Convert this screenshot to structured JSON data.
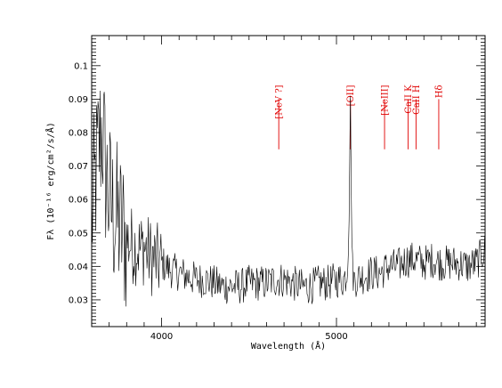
{
  "chart_data": {
    "type": "line",
    "title": "",
    "xlabel": "Wavelength (Å)",
    "ylabel": "Fλ (10⁻¹⁶ erg/cm²/s/Å)",
    "xlim": [
      3600,
      5850
    ],
    "ylim": [
      0.022,
      0.109
    ],
    "x_ticks": [
      4000,
      5000
    ],
    "y_ticks": [
      0.03,
      0.04,
      0.05,
      0.06,
      0.07,
      0.08,
      0.09,
      0.1
    ],
    "grid": false,
    "legend": "none",
    "colors": {
      "spectrum": "#000000",
      "annotation": "#e00000"
    },
    "annotations": [
      {
        "label": "[NeV ?]",
        "x": 4670,
        "y_range": [
          0.075,
          0.09
        ]
      },
      {
        "label": "[OII]",
        "x": 5080,
        "y_range": [
          0.075,
          0.09
        ]
      },
      {
        "label": "[NeIII]",
        "x": 5275,
        "y_range": [
          0.075,
          0.09
        ]
      },
      {
        "label": "CaII K",
        "x": 5410,
        "y_range": [
          0.075,
          0.09
        ]
      },
      {
        "label": "CaII H",
        "x": 5455,
        "y_range": [
          0.075,
          0.09
        ]
      },
      {
        "label": "Hδ",
        "x": 5585,
        "y_range": [
          0.075,
          0.09
        ]
      }
    ],
    "series": [
      {
        "x": [
          3600,
          3620,
          3640,
          3660,
          3680,
          3700,
          3720,
          3740,
          3760,
          3780,
          3800,
          3820,
          3840,
          3860,
          3880,
          3900,
          3920,
          3940,
          3960,
          3980,
          4000,
          4050,
          4100,
          4150,
          4200,
          4250,
          4300,
          4350,
          4400,
          4450,
          4500,
          4550,
          4600,
          4650,
          4700,
          4750,
          4800,
          4850,
          4900,
          4950,
          5000,
          5040,
          5060,
          5070,
          5075,
          5080,
          5085,
          5090,
          5100,
          5150,
          5200,
          5250,
          5300,
          5350,
          5400,
          5450,
          5500,
          5550,
          5600,
          5650,
          5700,
          5750,
          5800,
          5850
        ],
        "values": [
          0.055,
          0.065,
          0.075,
          0.082,
          0.068,
          0.06,
          0.056,
          0.054,
          0.052,
          0.05,
          0.048,
          0.047,
          0.046,
          0.046,
          0.045,
          0.046,
          0.044,
          0.043,
          0.042,
          0.041,
          0.041,
          0.039,
          0.038,
          0.037,
          0.036,
          0.036,
          0.035,
          0.034,
          0.034,
          0.034,
          0.035,
          0.035,
          0.035,
          0.036,
          0.036,
          0.035,
          0.034,
          0.034,
          0.035,
          0.035,
          0.036,
          0.036,
          0.038,
          0.05,
          0.07,
          0.091,
          0.06,
          0.04,
          0.036,
          0.037,
          0.038,
          0.038,
          0.04,
          0.04,
          0.042,
          0.042,
          0.041,
          0.042,
          0.041,
          0.041,
          0.041,
          0.04,
          0.041,
          0.045
        ]
      }
    ]
  }
}
